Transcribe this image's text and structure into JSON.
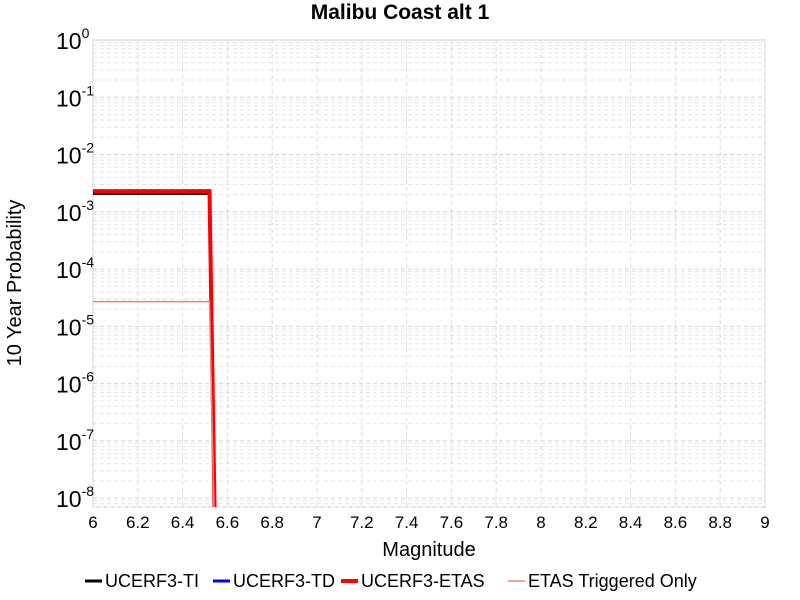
{
  "chart_data": {
    "type": "line",
    "title": "Malibu Coast alt 1",
    "xlabel": "Magnitude",
    "ylabel": "10 Year Probability",
    "xlim": [
      6,
      9
    ],
    "ylim": [
      7e-09,
      1
    ],
    "yscale": "log",
    "grid": true,
    "legend_position": "bottom",
    "x_ticks": [
      "6",
      "6.2",
      "6.4",
      "6.6",
      "6.8",
      "7",
      "7.2",
      "7.4",
      "7.6",
      "7.8",
      "8",
      "8.2",
      "8.4",
      "8.6",
      "8.8",
      "9"
    ],
    "y_ticks": [
      {
        "base": "10",
        "exp": "0"
      },
      {
        "base": "10",
        "exp": "-1"
      },
      {
        "base": "10",
        "exp": "-2"
      },
      {
        "base": "10",
        "exp": "-3"
      },
      {
        "base": "10",
        "exp": "-4"
      },
      {
        "base": "10",
        "exp": "-5"
      },
      {
        "base": "10",
        "exp": "-6"
      },
      {
        "base": "10",
        "exp": "-7"
      },
      {
        "base": "10",
        "exp": "-8"
      }
    ],
    "series": [
      {
        "name": "UCERF3-TI",
        "color": "#000000",
        "width": 3,
        "x": [
          6.0,
          6.5,
          6.52,
          6.55
        ],
        "y": [
          0.0021,
          0.0021,
          0.0021,
          1e-10
        ]
      },
      {
        "name": "UCERF3-TD",
        "color": "#0000ff",
        "width": 3,
        "x": [
          6.0,
          6.5,
          6.52,
          6.55
        ],
        "y": [
          0.0022,
          0.0022,
          0.0022,
          1e-10
        ]
      },
      {
        "name": "UCERF3-ETAS",
        "color": "#ff0000",
        "width": 4,
        "x": [
          6.0,
          6.5,
          6.52,
          6.55
        ],
        "y": [
          0.0023,
          0.0023,
          0.0023,
          1e-10
        ]
      },
      {
        "name": "ETAS Triggered Only",
        "color": "#f08080",
        "width": 1.5,
        "x": [
          6.0,
          6.5,
          6.52,
          6.55
        ],
        "y": [
          2.7e-05,
          2.7e-05,
          2.7e-05,
          1e-10
        ]
      }
    ]
  }
}
